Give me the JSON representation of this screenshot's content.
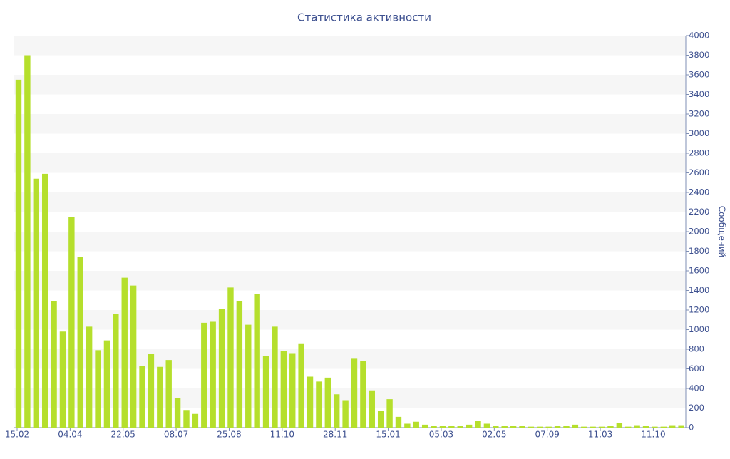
{
  "chart_data": {
    "type": "bar",
    "title": "Статистика активности",
    "y_label": "Сообщений",
    "categories": [
      "15.02",
      null,
      null,
      null,
      null,
      null,
      "04.04",
      null,
      null,
      null,
      null,
      null,
      "22.05",
      null,
      null,
      null,
      null,
      null,
      "08.07",
      null,
      null,
      null,
      null,
      null,
      "25.08",
      null,
      null,
      null,
      null,
      null,
      "11.10",
      null,
      null,
      null,
      null,
      null,
      "28.11",
      null,
      null,
      null,
      null,
      null,
      "15.01",
      null,
      null,
      null,
      null,
      null,
      "05.03",
      null,
      null,
      null,
      null,
      null,
      "02.05",
      null,
      null,
      null,
      null,
      null,
      "07.09",
      null,
      null,
      null,
      null,
      null,
      "11.03",
      null,
      null,
      null,
      null,
      null,
      "11.10",
      null,
      null,
      null
    ],
    "values": [
      3550,
      3800,
      2540,
      2590,
      1290,
      980,
      2150,
      1740,
      1030,
      790,
      890,
      1160,
      1530,
      1450,
      630,
      750,
      620,
      690,
      300,
      180,
      140,
      1070,
      1080,
      1210,
      1430,
      1290,
      1050,
      1360,
      730,
      1030,
      780,
      760,
      860,
      520,
      470,
      510,
      340,
      280,
      710,
      680,
      380,
      170,
      290,
      110,
      40,
      60,
      30,
      20,
      15,
      15,
      15,
      30,
      70,
      40,
      20,
      20,
      20,
      15,
      10,
      10,
      10,
      15,
      20,
      30,
      10,
      10,
      10,
      20,
      45,
      10,
      25,
      15,
      10,
      10,
      25,
      25
    ],
    "color": "#b5df2c",
    "ylim": [
      0,
      4000
    ],
    "yticks": [
      0,
      200,
      400,
      600,
      800,
      1000,
      1200,
      1400,
      1600,
      1800,
      2000,
      2200,
      2400,
      2600,
      2800,
      3000,
      3200,
      3400,
      3600,
      3800,
      4000
    ],
    "grid": true
  }
}
